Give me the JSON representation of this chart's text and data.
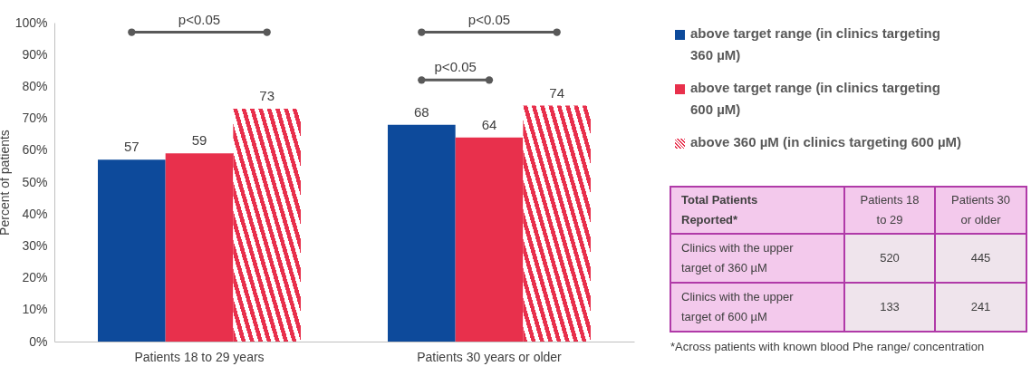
{
  "chart_data": {
    "type": "bar",
    "categories": [
      "Patients 18 to 29 years",
      "Patients 30 years or older"
    ],
    "series": [
      {
        "name": "above target range (in clinics targeting 360 µM)",
        "color": "#0d4a9b",
        "values": [
          57,
          68
        ]
      },
      {
        "name": "above target range (in clinics targeting 600 µM)",
        "color": "#e8304c",
        "values": [
          59,
          64
        ]
      },
      {
        "name": "above 360 µM (in clinics targeting 600 µM)",
        "color": "#e8304c",
        "values": [
          73,
          74
        ]
      }
    ],
    "ylabel": "Percent of patients",
    "ylim": [
      0,
      100
    ],
    "yticks": [
      {
        "value": 0,
        "label": "0%"
      },
      {
        "value": 10,
        "label": "10%"
      },
      {
        "value": 20,
        "label": "20%"
      },
      {
        "value": 30,
        "label": "30%"
      },
      {
        "value": 40,
        "label": "40%"
      },
      {
        "value": 50,
        "label": "50%"
      },
      {
        "value": 60,
        "label": "60%"
      },
      {
        "value": 70,
        "label": "70%"
      },
      {
        "value": 80,
        "label": "80%"
      },
      {
        "value": 90,
        "label": "90%"
      },
      {
        "value": 100,
        "label": "100%"
      }
    ],
    "grid": false,
    "legend": "right",
    "data_labels": true,
    "annotations": [
      "p<0.05",
      "p<0.05",
      "p<0.05",
      "Total Patients Reported*",
      "Patients 18 to 29",
      "Patients 30 or older",
      "Clinics with the upper target of 360 µM",
      "520",
      "445",
      "Clinics with the upper target of 600 µM",
      "133",
      "241",
      "*Across patients with known blood Phe range/ concentration"
    ]
  }
}
